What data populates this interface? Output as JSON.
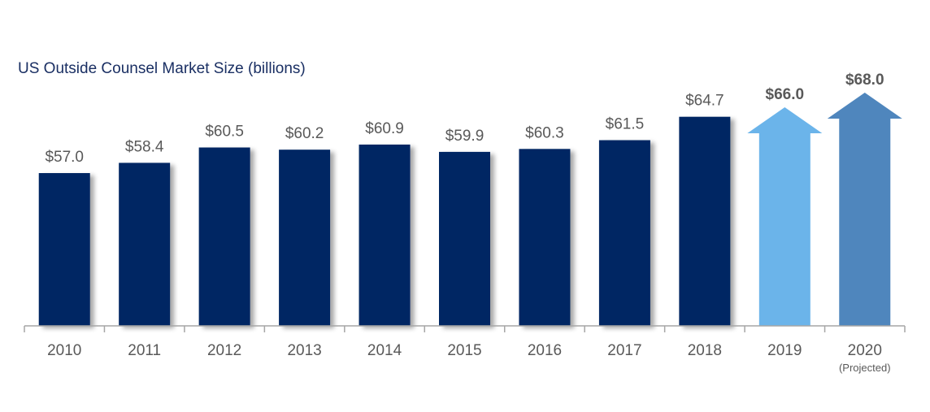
{
  "chart_data": {
    "type": "bar",
    "title": "US Outside Counsel Market Size (billions)",
    "xlabel": "",
    "ylabel": "",
    "categories": [
      "2010",
      "2011",
      "2012",
      "2013",
      "2014",
      "2015",
      "2016",
      "2017",
      "2018",
      "2019",
      "2020"
    ],
    "category_sublabels": [
      "",
      "",
      "",
      "",
      "",
      "",
      "",
      "",
      "",
      "",
      "(Projected)"
    ],
    "values": [
      57.0,
      58.4,
      60.5,
      60.2,
      60.9,
      59.9,
      60.3,
      61.5,
      64.7,
      66.0,
      68.0
    ],
    "value_labels": [
      "$57.0",
      "$58.4",
      "$60.5",
      "$60.2",
      "$60.9",
      "$59.9",
      "$60.3",
      "$61.5",
      "$64.7",
      "$66.0",
      "$68.0"
    ],
    "mark_shape": [
      "bar",
      "bar",
      "bar",
      "bar",
      "bar",
      "bar",
      "bar",
      "bar",
      "bar",
      "arrow",
      "arrow"
    ],
    "bold_labels": [
      false,
      false,
      false,
      false,
      false,
      false,
      false,
      false,
      false,
      true,
      true
    ],
    "colors": [
      "#002864",
      "#002864",
      "#002864",
      "#002864",
      "#002864",
      "#002864",
      "#002864",
      "#002864",
      "#002864",
      "#6bb4ea",
      "#4f86bd"
    ],
    "grid": false,
    "legend": "none",
    "y_axis_visible": false
  }
}
